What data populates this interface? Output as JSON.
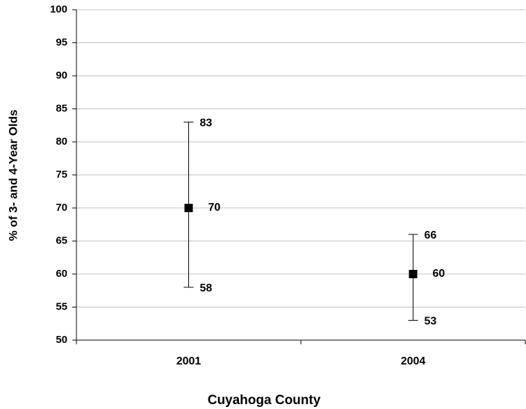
{
  "chart_data": {
    "type": "errorbar",
    "x_label": "Cuyahoga County",
    "y_label": "% of 3- and 4-Year Olds",
    "categories": [
      "2001",
      "2004"
    ],
    "values": [
      70,
      60
    ],
    "high": [
      83,
      66
    ],
    "low": [
      58,
      53
    ],
    "color": "#000000",
    "ylim": [
      50,
      100
    ],
    "yticks": [
      50,
      55,
      60,
      65,
      70,
      75,
      80,
      85,
      90,
      95,
      100
    ],
    "grid": true
  }
}
